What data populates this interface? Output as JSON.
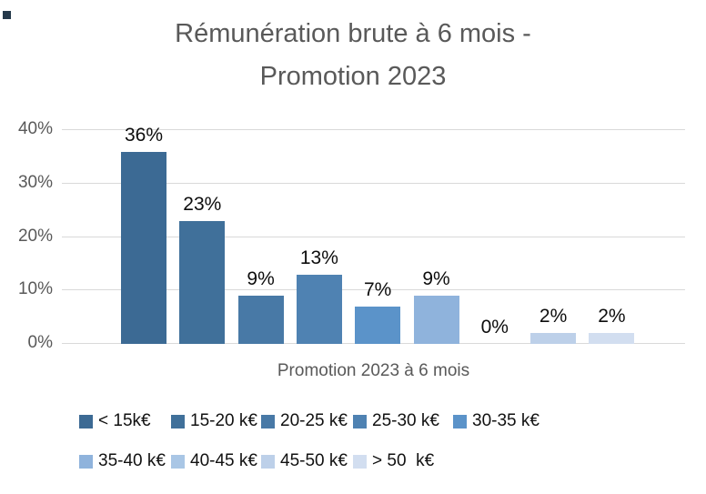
{
  "header": {
    "title_line1": "Rémunération brute à 6 mois -",
    "title_line2": "Promotion 2023"
  },
  "chart_data": {
    "type": "bar",
    "title": "Rémunération brute à 6 mois - Promotion 2023",
    "categories": [
      "< 15k€",
      "15-20 k€",
      "20-25 k€",
      "25-30 k€",
      "30-35 k€",
      "35-40 k€",
      "40-45 k€",
      "45-50 k€",
      "> 50  k€"
    ],
    "values": [
      36,
      23,
      9,
      13,
      7,
      9,
      0,
      2,
      2
    ],
    "value_labels": [
      "36%",
      "23%",
      "9%",
      "13%",
      "7%",
      "9%",
      "0%",
      "2%",
      "2%"
    ],
    "colors": [
      "#3C6A94",
      "#40709A",
      "#4879A6",
      "#4F82B2",
      "#5B93C9",
      "#8FB3DC",
      "#A9C6E5",
      "#BDD0E9",
      "#D2DEF0"
    ],
    "xlabel": "Promotion 2023 à 6 mois",
    "ylabel": "",
    "ylim": [
      0,
      40
    ],
    "yticks": {
      "values": [
        0,
        10,
        20,
        30,
        40
      ],
      "labels": [
        "0%",
        "10%",
        "20%",
        "30%",
        "40%"
      ]
    },
    "grid": true,
    "legend_position": "bottom"
  },
  "style": {
    "title_gray": "#595959",
    "gridline_gray": "#D9D9D9",
    "label_black": "#0d0d0d",
    "accent_dark_blue": "#3C6A94",
    "accent_light_blue": "#D2DEF0"
  }
}
